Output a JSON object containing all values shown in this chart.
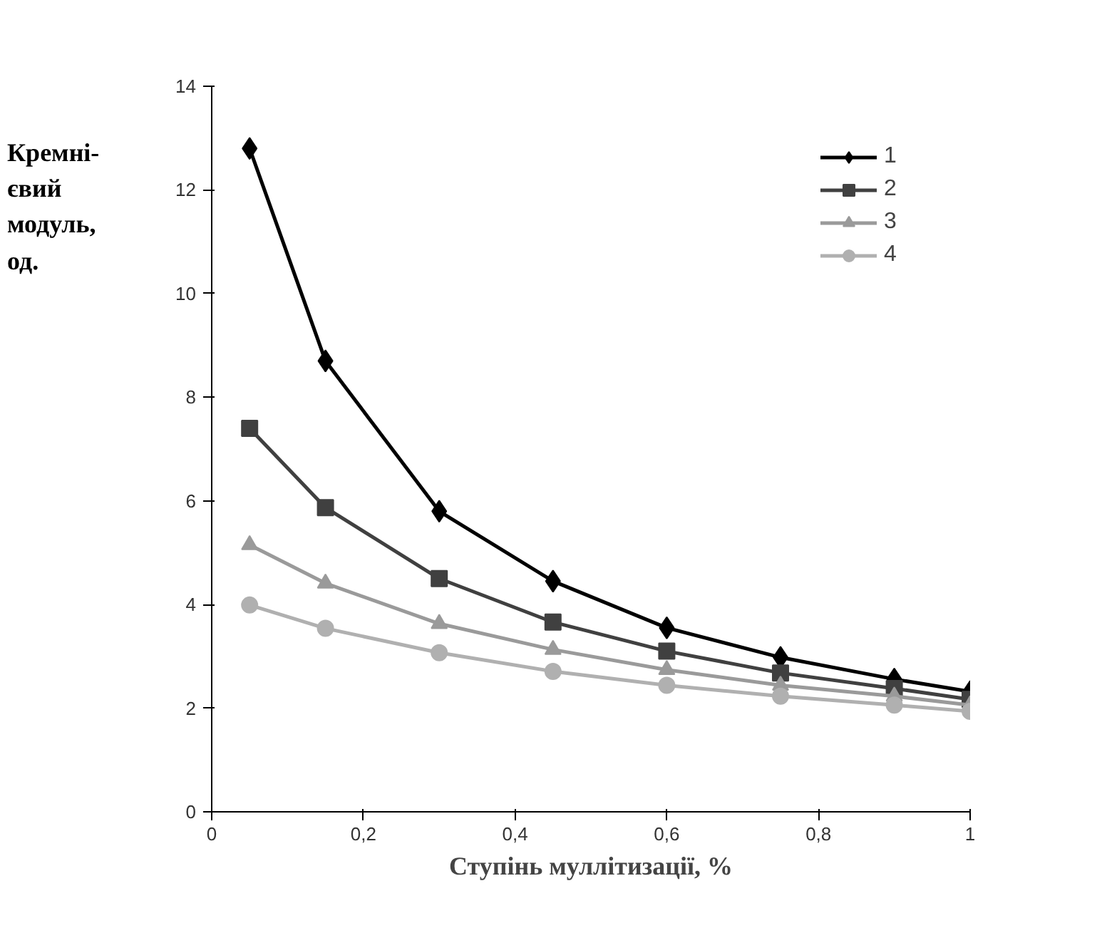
{
  "chart_data": {
    "type": "line",
    "xlabel": "Ступінь муллітизації, %",
    "ylabel": "Кремні-\nєвий\nмодуль,\nод.",
    "x": [
      0.05,
      0.15,
      0.3,
      0.45,
      0.6,
      0.75,
      0.9,
      1
    ],
    "series": [
      {
        "name": "1",
        "color": "#000000",
        "marker": "diamond",
        "values": [
          12.8,
          8.7,
          5.8,
          4.45,
          3.55,
          2.98,
          2.56,
          2.32
        ]
      },
      {
        "name": "2",
        "color": "#404040",
        "marker": "square",
        "values": [
          7.4,
          5.87,
          4.5,
          3.66,
          3.1,
          2.68,
          2.38,
          2.17
        ]
      },
      {
        "name": "3",
        "color": "#9a9a9a",
        "marker": "triangle",
        "values": [
          5.15,
          4.41,
          3.63,
          3.13,
          2.74,
          2.44,
          2.23,
          2.06
        ]
      },
      {
        "name": "4",
        "color": "#b0b0b0",
        "marker": "circle",
        "values": [
          3.99,
          3.54,
          3.07,
          2.71,
          2.44,
          2.23,
          2.06,
          1.94
        ]
      }
    ],
    "xlim": [
      0,
      1
    ],
    "ylim": [
      0,
      14
    ],
    "xticks": [
      0,
      {
        "value": 0.2,
        "label": "0,2"
      },
      {
        "value": 0.4,
        "label": "0,4"
      },
      {
        "value": 0.6,
        "label": "0,6"
      },
      {
        "value": 0.8,
        "label": "0,8"
      },
      1
    ],
    "yticks": [
      0,
      2,
      4,
      6,
      8,
      10,
      12,
      14
    ],
    "grid": false,
    "legend": "top right",
    "line_style": "solid"
  }
}
